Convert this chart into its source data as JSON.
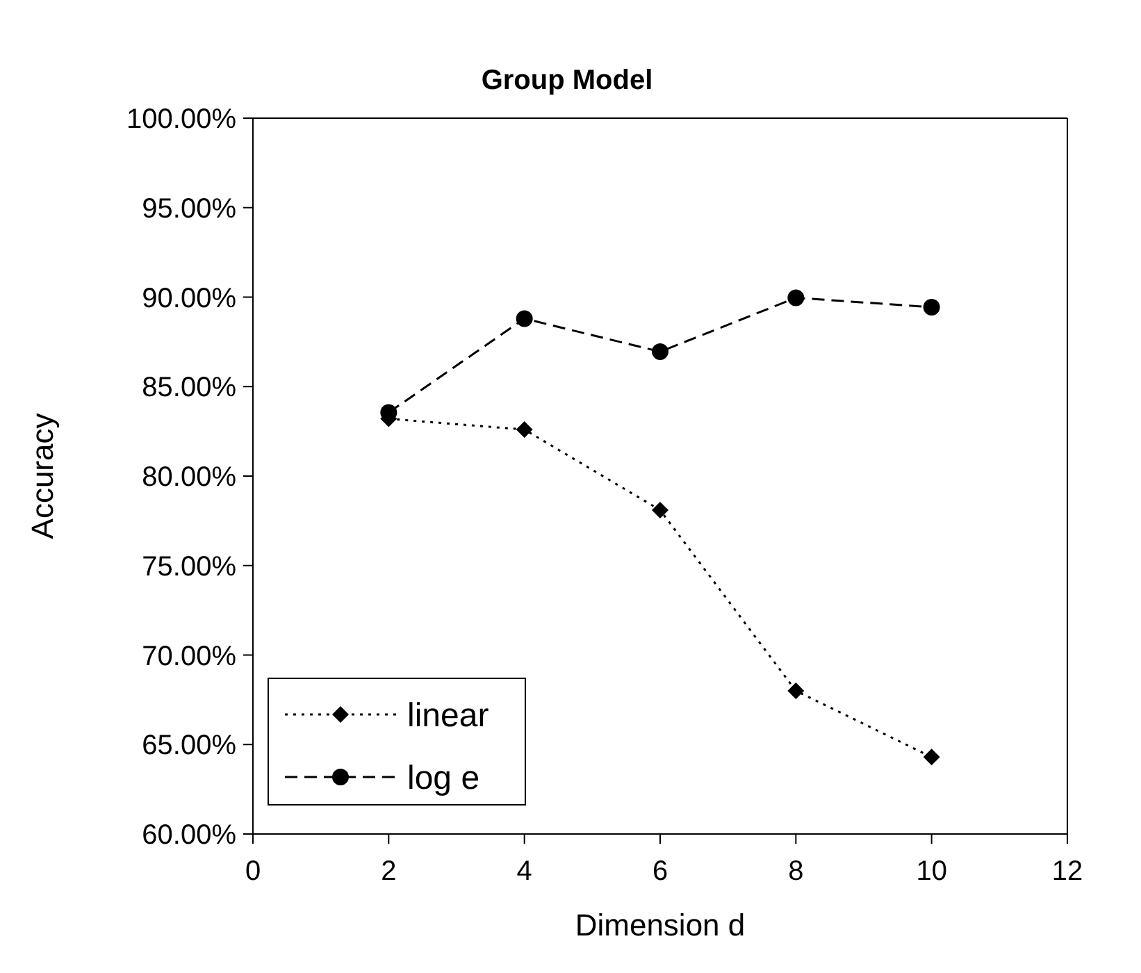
{
  "chart_data": {
    "type": "line",
    "title": "Group Model",
    "xlabel": "Dimension d",
    "ylabel": "Accuracy",
    "x": [
      2,
      4,
      6,
      8,
      10
    ],
    "series": [
      {
        "name": "linear",
        "color": "#000000",
        "values": [
          83.2,
          82.6,
          78.1,
          68.0,
          64.3
        ],
        "marker": "diamond",
        "line_style": "dotted"
      },
      {
        "name": "log e",
        "color": "#000000",
        "values": [
          83.55,
          88.8,
          86.95,
          89.96,
          89.44
        ],
        "marker": "circle",
        "line_style": "dashed"
      }
    ],
    "xlim": [
      0,
      12
    ],
    "xticks": [
      0,
      2,
      4,
      6,
      8,
      10,
      12
    ],
    "ylim": [
      60,
      100
    ],
    "yticks": [
      {
        "value": 60,
        "label": "60.00%"
      },
      {
        "value": 65,
        "label": "65.00%"
      },
      {
        "value": 70,
        "label": "70.00%"
      },
      {
        "value": 75,
        "label": "75.00%"
      },
      {
        "value": 80,
        "label": "80.00%"
      },
      {
        "value": 85,
        "label": "85.00%"
      },
      {
        "value": 90,
        "label": "90.00%"
      },
      {
        "value": 95,
        "label": "95.00%"
      },
      {
        "value": 100,
        "label": "100.00%"
      }
    ],
    "grid": false,
    "legend": "bottom left"
  }
}
